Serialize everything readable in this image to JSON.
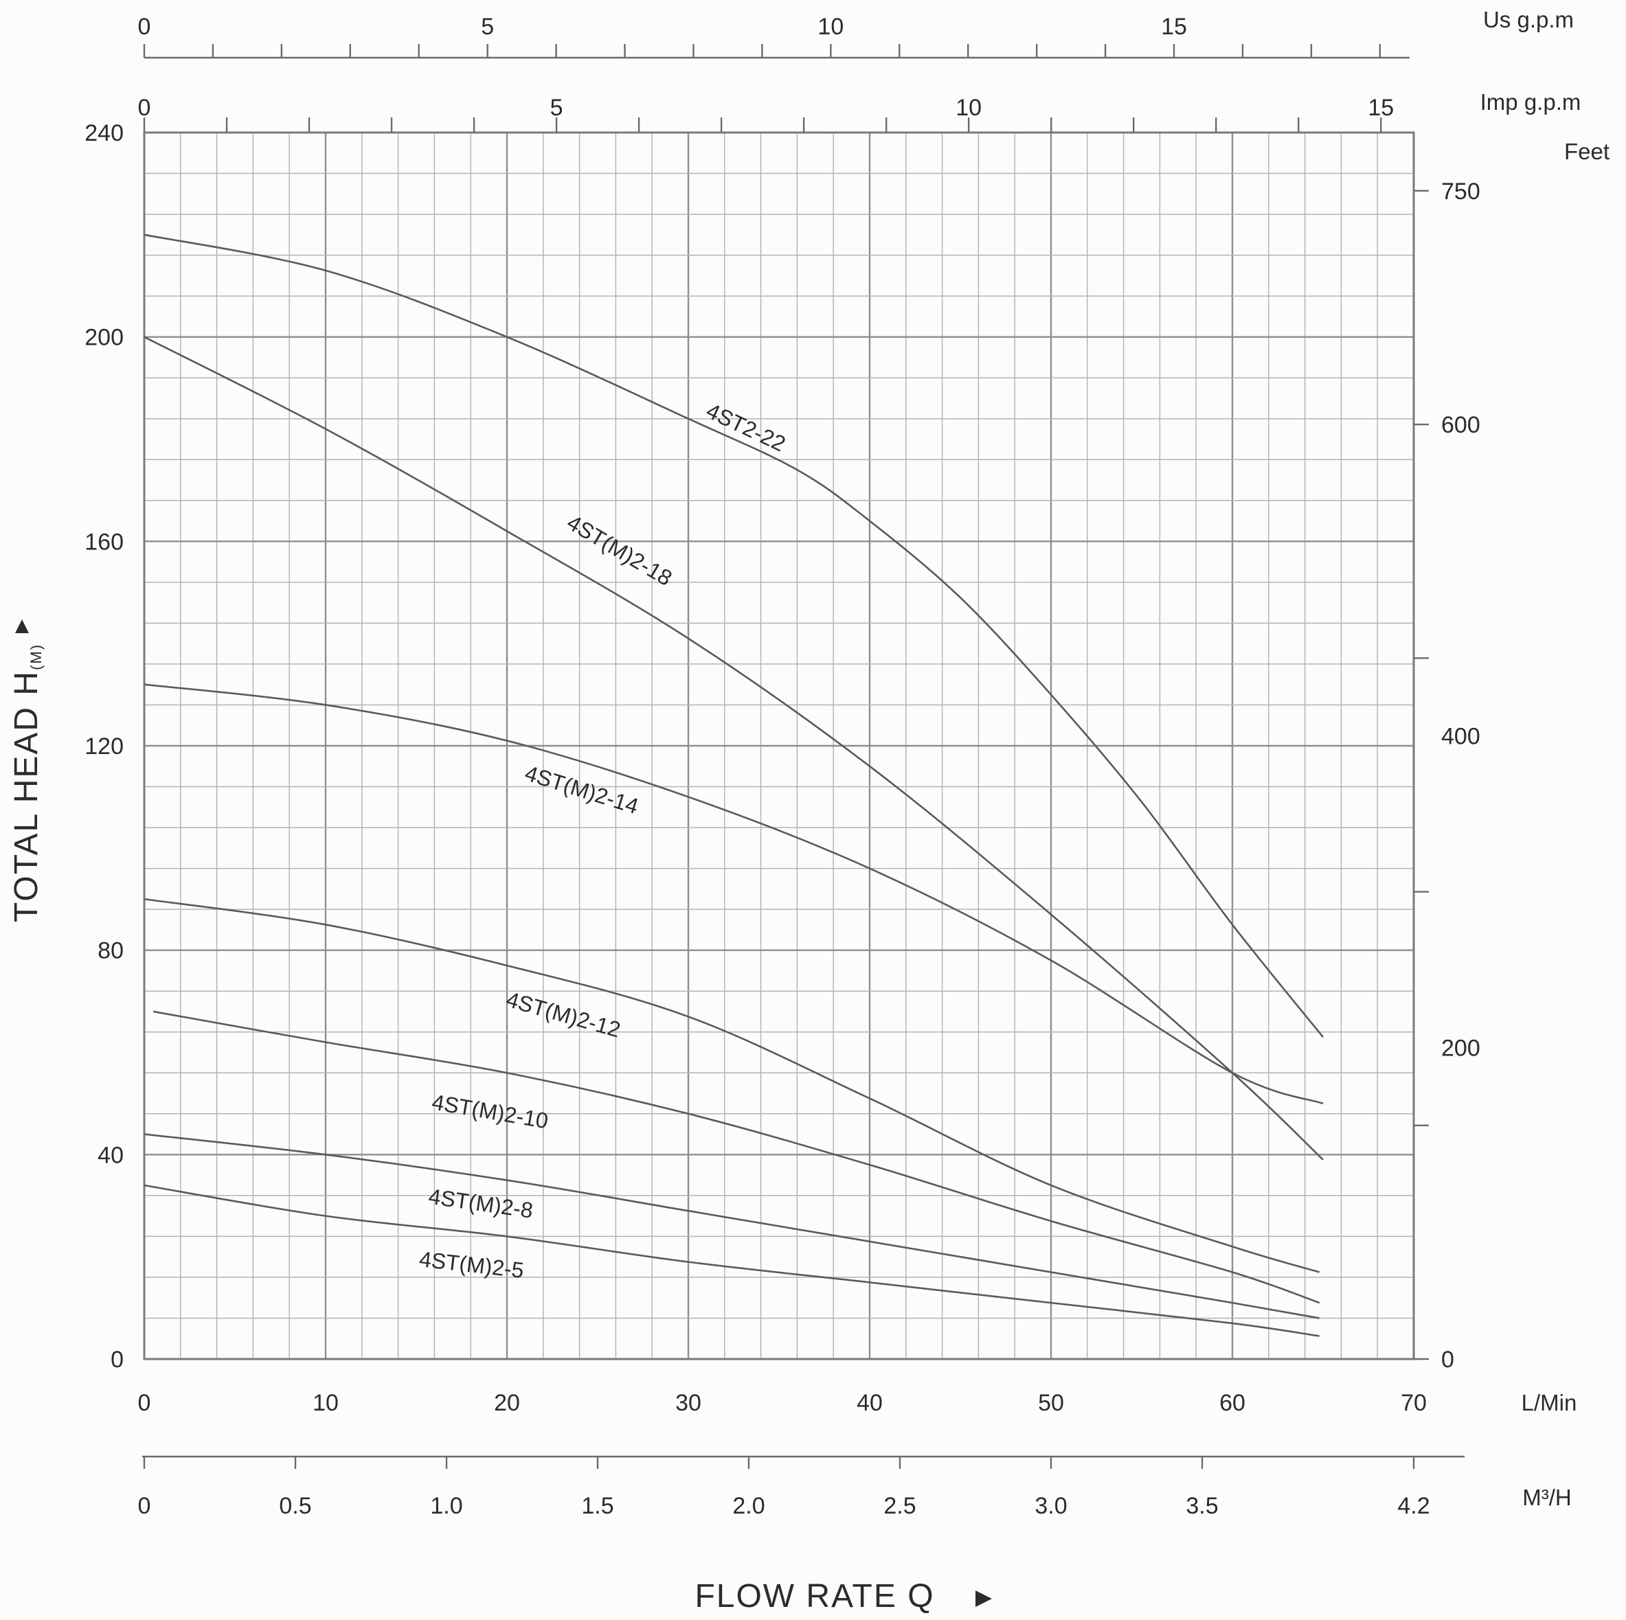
{
  "chart_data": {
    "type": "line",
    "xlabel": "FLOW RATE Q",
    "ylabel_text": "TOTAL HEAD H",
    "ylabel_sub": "(M)",
    "x_unit": "L/Min",
    "x_m3h_unit": "M³/H",
    "x_us_gpm_unit": "Us g.p.m",
    "x_imp_gpm_unit": "Imp g.p.m",
    "y_right_unit": "Feet",
    "xlim": [
      0,
      70
    ],
    "ylim": [
      0,
      240
    ],
    "x_ticks": [
      0,
      10,
      20,
      30,
      40,
      50,
      60,
      70
    ],
    "y_ticks": [
      0,
      40,
      80,
      120,
      160,
      200,
      240
    ],
    "x_m3h_ticks": [
      "0",
      "0.5",
      "1.0",
      "1.5",
      "2.0",
      "2.5",
      "3.0",
      "3.5",
      "4.2"
    ],
    "x_us_gpm_ticks": [
      "0",
      "5",
      "10",
      "15"
    ],
    "x_imp_gpm_ticks": [
      "0",
      "5",
      "10",
      "15"
    ],
    "y_feet_ticks": [
      "0",
      "200",
      "400",
      "600",
      "750"
    ],
    "series": [
      {
        "name": "4ST2-22",
        "label_at": [
          33,
          181
        ],
        "x": [
          0,
          10,
          20,
          30,
          36,
          40,
          45,
          50,
          55,
          60,
          65
        ],
        "y": [
          220,
          213,
          200,
          184,
          174,
          164,
          149,
          130,
          109,
          85,
          63
        ]
      },
      {
        "name": "4ST(M)2-18",
        "label_at": [
          26,
          157
        ],
        "x": [
          0,
          10,
          20,
          30,
          40,
          50,
          60,
          65
        ],
        "y": [
          200,
          182,
          162,
          141,
          116,
          87,
          56,
          39
        ]
      },
      {
        "name": "4ST(M)2-14",
        "label_at": [
          24,
          110
        ],
        "x": [
          0,
          10,
          20,
          30,
          40,
          50,
          60,
          65
        ],
        "y": [
          132,
          128,
          121,
          110,
          96,
          78,
          56,
          50
        ]
      },
      {
        "name": "4ST(M)2-12",
        "label_at": [
          23,
          66
        ],
        "x": [
          0,
          10,
          20,
          30,
          40,
          50,
          60,
          64.8
        ],
        "y": [
          90,
          85,
          77,
          67,
          51,
          34,
          22,
          17
        ]
      },
      {
        "name": "4ST(M)2-10",
        "label_at": [
          19,
          47
        ],
        "x": [
          0.5,
          10,
          20,
          30,
          40,
          50,
          60,
          64.8
        ],
        "y": [
          68,
          62,
          56,
          48,
          38,
          27,
          17,
          11
        ]
      },
      {
        "name": "4ST(M)2-8",
        "label_at": [
          18.5,
          29
        ],
        "x": [
          0,
          10,
          20,
          30,
          40,
          50,
          60,
          64.8
        ],
        "y": [
          44,
          40,
          35,
          29,
          23,
          17,
          11,
          8
        ]
      },
      {
        "name": "4ST(M)2-5",
        "label_at": [
          18,
          17
        ],
        "x": [
          0,
          10,
          20,
          30,
          40,
          50,
          60,
          64.8
        ],
        "y": [
          34,
          28,
          24,
          19,
          15,
          11,
          7,
          4.5
        ]
      }
    ]
  }
}
